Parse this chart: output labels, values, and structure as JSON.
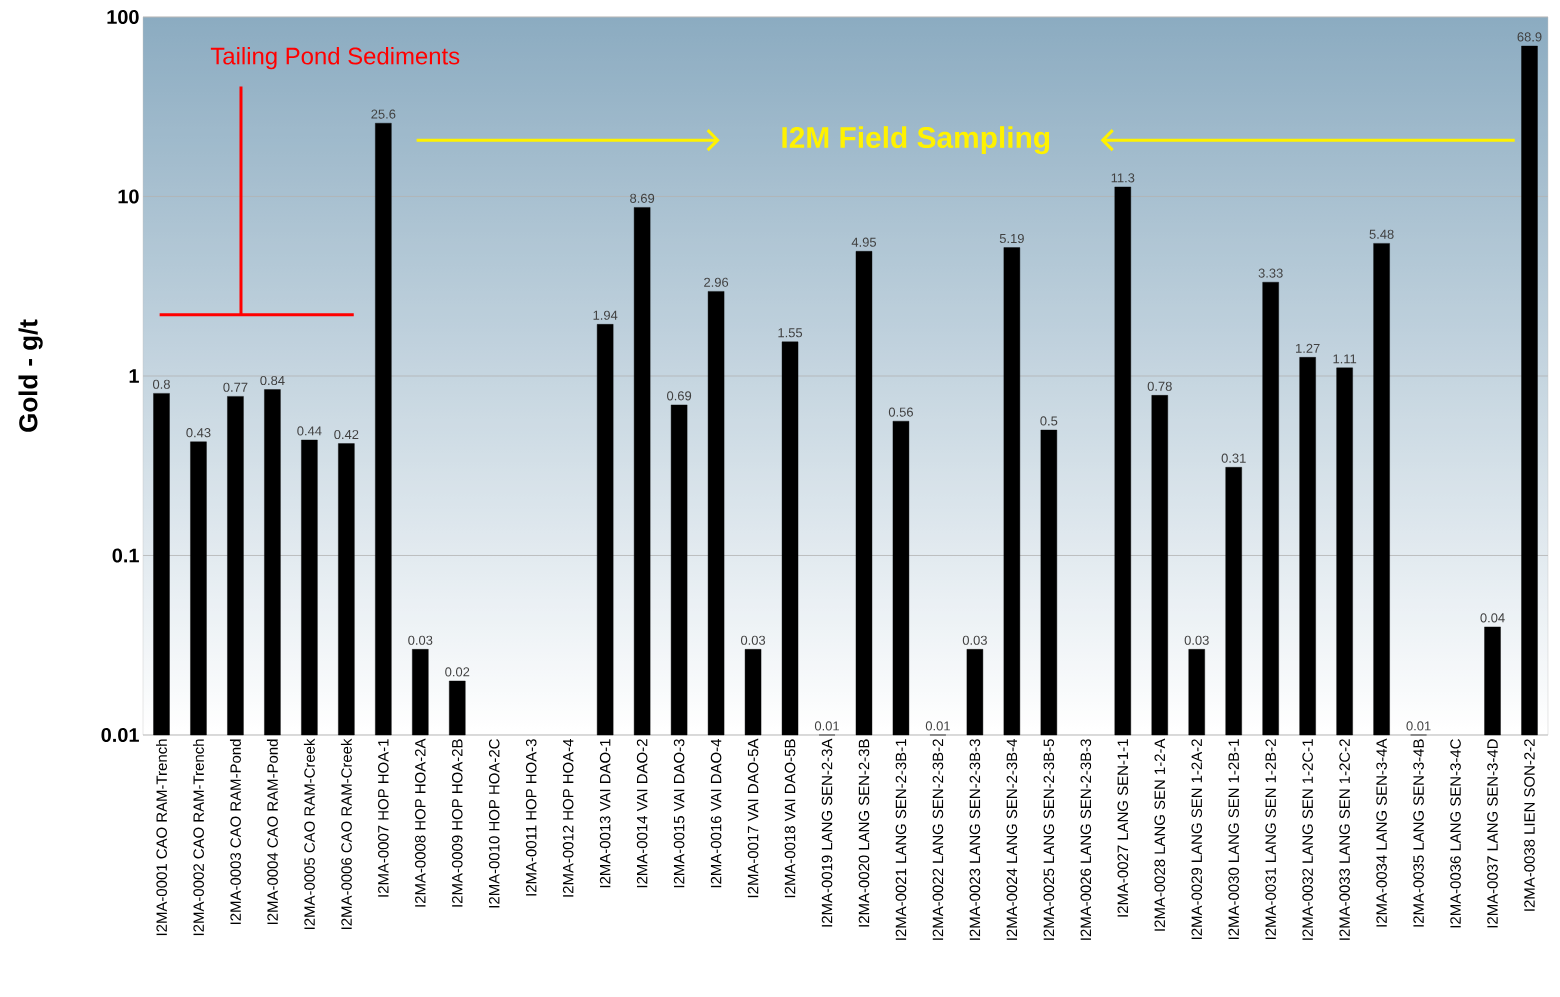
{
  "chart_data": {
    "type": "bar",
    "ylabel": "Gold - g/t",
    "categories": [
      "I2MA-0001 CAO RAM-Trench",
      "I2MA-0002 CAO RAM-Trench",
      "I2MA-0003 CAO RAM-Pond",
      "I2MA-0004 CAO RAM-Pond",
      "I2MA-0005 CAO RAM-Creek",
      "I2MA-0006 CAO RAM-Creek",
      "I2MA-0007 HOP HOA-1",
      "I2MA-0008 HOP HOA-2A",
      "I2MA-0009 HOP HOA-2B",
      "I2MA-0010 HOP HOA-2C",
      "I2MA-0011 HOP HOA-3",
      "I2MA-0012 HOP HOA-4",
      "I2MA-0013 VAI DAO-1",
      "I2MA-0014 VAI DAO-2",
      "I2MA-0015 VAI DAO-3",
      "I2MA-0016 VAI DAO-4",
      "I2MA-0017 VAI DAO-5A",
      "I2MA-0018 VAI DAO-5B",
      "I2MA-0019 LANG SEN-2-3A",
      "I2MA-0020 LANG SEN-2-3B",
      "I2MA-0021 LANG SEN-2-3B-1",
      "I2MA-0022 LANG SEN-2-3B-2",
      "I2MA-0023 LANG SEN-2-3B-3",
      "I2MA-0024 LANG SEN-2-3B-4",
      "I2MA-0025 LANG SEN-2-3B-5",
      "I2MA-0026 LANG SEN-2-3B-3",
      "I2MA-0027 LANG SEN-1-1",
      "I2MA-0028 LANG SEN 1-2-A",
      "I2MA-0029 LANG SEN 1-2A-2",
      "I2MA-0030 LANG SEN 1-2B-1",
      "I2MA-0031 LANG SEN 1-2B-2",
      "I2MA-0032 LANG SEN 1-2C-1",
      "I2MA-0033 LANG SEN 1-2C-2",
      "I2MA-0034 LANG SEN-3-4A",
      "I2MA-0035 LANG SEN-3-4B",
      "I2MA-0036 LANG SEN-3-4C",
      "I2MA-0037 LANG SEN-3-4D",
      "I2MA-0038 LIEN SON-2-2"
    ],
    "values": [
      0.8,
      0.43,
      0.77,
      0.84,
      0.44,
      0.42,
      25.6,
      0.03,
      0.02,
      null,
      null,
      null,
      1.94,
      8.69,
      0.69,
      2.96,
      0.03,
      1.55,
      0.01,
      4.95,
      0.56,
      0.01,
      0.03,
      5.19,
      0.5,
      null,
      11.3,
      0.78,
      0.03,
      0.31,
      3.33,
      1.27,
      1.11,
      5.48,
      0.01,
      null,
      0.04,
      68.9
    ],
    "color": "#000000",
    "log": true,
    "ylim": [
      0.01,
      100
    ],
    "yticks": [
      0.01,
      0.1,
      1,
      10,
      100
    ],
    "grid": "y",
    "data_labels": true,
    "annotations": [
      "Tailing Pond Sediments",
      "I2M Field Sampling"
    ]
  }
}
